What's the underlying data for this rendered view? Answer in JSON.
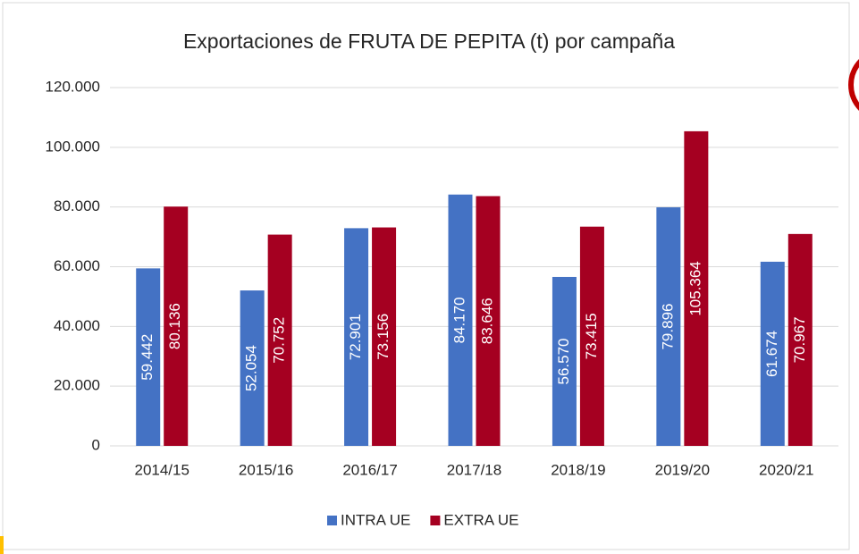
{
  "chart_data": {
    "type": "bar",
    "title": "Exportaciones de FRUTA DE PEPITA (t) por campaña",
    "categories": [
      "2014/15",
      "2015/16",
      "2016/17",
      "2017/18",
      "2018/19",
      "2019/20",
      "2020/21"
    ],
    "series": [
      {
        "name": "INTRA UE",
        "color": "#4472c4",
        "values": [
          59442,
          52054,
          72901,
          84170,
          56570,
          79896,
          61674
        ],
        "value_labels": [
          "59.442",
          "52.054",
          "72.901",
          "84.170",
          "56.570",
          "79.896",
          "61.674"
        ]
      },
      {
        "name": "EXTRA UE",
        "color": "#a50021",
        "values": [
          80136,
          70752,
          73156,
          83646,
          73415,
          105364,
          70967
        ],
        "value_labels": [
          "80.136",
          "70.752",
          "73.156",
          "83.646",
          "73.415",
          "105.364",
          "70.967"
        ]
      }
    ],
    "ylim": [
      0,
      120000
    ],
    "yticks": [
      0,
      {
        "value": 20000,
        "label": "20.000"
      },
      {
        "value": 40000,
        "label": "40.000"
      },
      {
        "value": 60000,
        "label": "60.000"
      },
      {
        "value": 80000,
        "label": "80.000"
      },
      {
        "value": 100000,
        "label": "100.000"
      },
      {
        "value": 120000,
        "label": "120.000"
      }
    ],
    "grid": true,
    "legend": "bottom"
  }
}
